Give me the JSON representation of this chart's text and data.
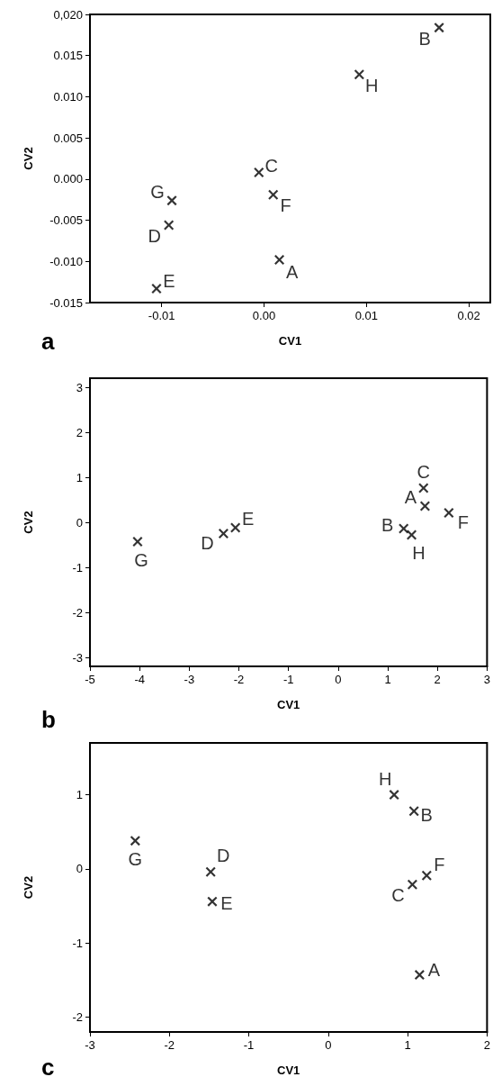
{
  "chart_data": [
    {
      "type": "scatter",
      "xlabel": "CV1",
      "ylabel": "CV2",
      "marker": "cross",
      "grid": false,
      "annotations": [
        "a"
      ],
      "xlim": [
        -0.017,
        0.0221
      ],
      "ylim": [
        -0.015,
        0.02
      ],
      "xticks": [
        {
          "value": -0.01,
          "label": "-0.01"
        },
        {
          "value": 0,
          "label": "0.00"
        },
        {
          "value": 0.01,
          "label": "0.01"
        },
        {
          "value": 0.02,
          "label": "0.02"
        }
      ],
      "yticks": [
        {
          "value": -0.015,
          "label": "-0.015"
        },
        {
          "value": -0.01,
          "label": "-0.010"
        },
        {
          "value": -0.005,
          "label": "-0.005"
        },
        {
          "value": 0,
          "label": "0.000"
        },
        {
          "value": 0.005,
          "label": "0.005"
        },
        {
          "value": 0.01,
          "label": "0.010"
        },
        {
          "value": 0.015,
          "label": "0.015"
        },
        {
          "value": 0.02,
          "label": "0,020"
        }
      ],
      "series": [
        {
          "name": "A",
          "color": "#000000",
          "x": [
            0.0015
          ],
          "values": [
            -0.0098
          ]
        },
        {
          "name": "B",
          "color": "#000000",
          "x": [
            0.0171
          ],
          "values": [
            0.0184
          ]
        },
        {
          "name": "C",
          "color": "#000000",
          "x": [
            -0.0005
          ],
          "values": [
            0.0008
          ]
        },
        {
          "name": "D",
          "color": "#000000",
          "x": [
            -0.0093
          ],
          "values": [
            -0.0056
          ]
        },
        {
          "name": "E",
          "color": "#000000",
          "x": [
            -0.0105
          ],
          "values": [
            -0.0133
          ]
        },
        {
          "name": "F",
          "color": "#000000",
          "x": [
            0.0009
          ],
          "values": [
            -0.0019
          ]
        },
        {
          "name": "G",
          "color": "#000000",
          "x": [
            -0.009
          ],
          "values": [
            -0.0026
          ]
        },
        {
          "name": "H",
          "color": "#000000",
          "x": [
            0.0093
          ],
          "values": [
            0.0127
          ]
        }
      ]
    },
    {
      "type": "scatter",
      "xlabel": "CV1",
      "ylabel": "CV2",
      "marker": "cross",
      "grid": false,
      "annotations": [
        "b"
      ],
      "xlim": [
        -5,
        3
      ],
      "ylim": [
        -3.2,
        3.2
      ],
      "xticks": [
        -5,
        -4,
        -3,
        -2,
        -1,
        0,
        1,
        2,
        3
      ],
      "yticks": [
        -3,
        -2,
        -1,
        0,
        1,
        2,
        3
      ],
      "series": [
        {
          "name": "A",
          "color": "#000000",
          "x": [
            1.75
          ],
          "values": [
            0.36
          ]
        },
        {
          "name": "B",
          "color": "#000000",
          "x": [
            1.32
          ],
          "values": [
            -0.14
          ]
        },
        {
          "name": "C",
          "color": "#000000",
          "x": [
            1.72
          ],
          "values": [
            0.76
          ]
        },
        {
          "name": "D",
          "color": "#000000",
          "x": [
            -2.31
          ],
          "values": [
            -0.25
          ]
        },
        {
          "name": "E",
          "color": "#000000",
          "x": [
            -2.07
          ],
          "values": [
            -0.12
          ]
        },
        {
          "name": "F",
          "color": "#000000",
          "x": [
            2.23
          ],
          "values": [
            0.21
          ]
        },
        {
          "name": "G",
          "color": "#000000",
          "x": [
            -4.04
          ],
          "values": [
            -0.43
          ]
        },
        {
          "name": "H",
          "color": "#000000",
          "x": [
            1.48
          ],
          "values": [
            -0.28
          ]
        }
      ]
    },
    {
      "type": "scatter",
      "xlabel": "CV1",
      "ylabel": "CV2",
      "marker": "cross",
      "grid": false,
      "annotations": [
        "c"
      ],
      "xlim": [
        -3,
        2
      ],
      "ylim": [
        -2.2,
        1.7
      ],
      "xticks": [
        -3,
        -2,
        -1,
        0,
        1,
        2
      ],
      "yticks": [
        -2,
        -1,
        0,
        1
      ],
      "series": [
        {
          "name": "A",
          "color": "#000000",
          "x": [
            1.15
          ],
          "values": [
            -1.43
          ]
        },
        {
          "name": "B",
          "color": "#000000",
          "x": [
            1.08
          ],
          "values": [
            0.78
          ]
        },
        {
          "name": "C",
          "color": "#000000",
          "x": [
            1.06
          ],
          "values": [
            -0.21
          ]
        },
        {
          "name": "D",
          "color": "#000000",
          "x": [
            -1.48
          ],
          "values": [
            -0.04
          ]
        },
        {
          "name": "E",
          "color": "#000000",
          "x": [
            -1.46
          ],
          "values": [
            -0.44
          ]
        },
        {
          "name": "F",
          "color": "#000000",
          "x": [
            1.24
          ],
          "values": [
            -0.09
          ]
        },
        {
          "name": "G",
          "color": "#000000",
          "x": [
            -2.43
          ],
          "values": [
            0.38
          ]
        },
        {
          "name": "H",
          "color": "#000000",
          "x": [
            0.83
          ],
          "values": [
            1.0
          ]
        }
      ]
    }
  ]
}
